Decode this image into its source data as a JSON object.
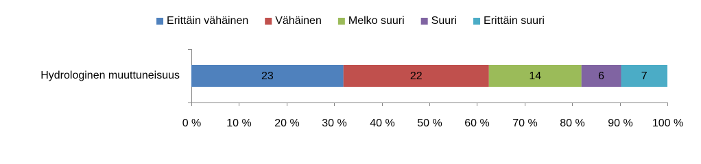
{
  "chart_data": {
    "type": "bar",
    "orientation": "horizontal",
    "stacking": "percent",
    "categories": [
      "Hydrologinen muuttuneisuus"
    ],
    "series": [
      {
        "name": "Erittäin vähäinen",
        "color": "#4f81bd",
        "values": [
          23
        ]
      },
      {
        "name": "Vähäinen",
        "color": "#c0504d",
        "values": [
          22
        ]
      },
      {
        "name": "Melko suuri",
        "color": "#9bbb59",
        "values": [
          14
        ]
      },
      {
        "name": "Suuri",
        "color": "#8064a2",
        "values": [
          6
        ]
      },
      {
        "name": "Erittäin suuri",
        "color": "#4bacc6",
        "values": [
          7
        ]
      }
    ],
    "xlim": [
      0,
      100
    ],
    "xticks": [
      {
        "value": 0,
        "label": "0 %"
      },
      {
        "value": 10,
        "label": "10 %"
      },
      {
        "value": 20,
        "label": "20 %"
      },
      {
        "value": 30,
        "label": "30 %"
      },
      {
        "value": 40,
        "label": "40 %"
      },
      {
        "value": 50,
        "label": "50 %"
      },
      {
        "value": 60,
        "label": "60 %"
      },
      {
        "value": 70,
        "label": "70 %"
      },
      {
        "value": 80,
        "label": "80 %"
      },
      {
        "value": 90,
        "label": "90 %"
      },
      {
        "value": 100,
        "label": "100 %"
      }
    ],
    "legend": "top",
    "grid": false
  }
}
